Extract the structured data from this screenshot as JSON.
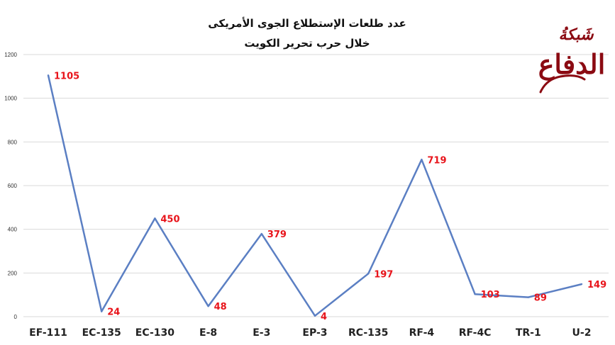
{
  "chart_data": {
    "type": "line",
    "title": "عدد طلعات الإستطلاع الجوى الأمريكى",
    "subtitle": "خلال حرب تحرير الكويت",
    "categories": [
      "EF-111",
      "EC-135",
      "EC-130",
      "E-8",
      "E-3",
      "EP-3",
      "RC-135",
      "RF-4",
      "RF-4C",
      "TR-1",
      "U-2"
    ],
    "values": [
      1105,
      24,
      450,
      48,
      379,
      4,
      197,
      719,
      103,
      89,
      149
    ],
    "data_labels": [
      "1105",
      "24",
      "450",
      "48",
      "379",
      "4",
      "197",
      "719",
      "103",
      "89",
      "149"
    ],
    "yticks": [
      "0",
      "200",
      "400",
      "600",
      "800",
      "1000",
      "1200"
    ],
    "ylim": [
      0,
      1200
    ],
    "xlabel": "",
    "ylabel": "",
    "grid": "horizontal",
    "legend": "none",
    "line_color": "#5B7FC3",
    "label_color": "#E8141B",
    "grid_color": "#D9D9D9"
  },
  "logo": {
    "text_top": "شَبكةُ",
    "text_main": "الدفاع",
    "color": "#8B0A12"
  }
}
